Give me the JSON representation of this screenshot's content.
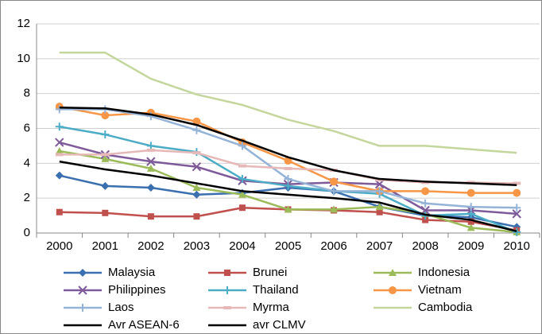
{
  "chart_data": {
    "type": "line",
    "categories": [
      "2000",
      "2001",
      "2002",
      "2003",
      "2004",
      "2005",
      "2006",
      "2007",
      "2008",
      "2009",
      "2010"
    ],
    "ylim": [
      0,
      12
    ],
    "yticks": [
      0,
      2,
      4,
      6,
      8,
      10,
      12
    ],
    "grid": true,
    "series": [
      {
        "name": "Malaysia",
        "color": "#3a6fb0",
        "marker": "diamond",
        "values": [
          3.3,
          2.7,
          2.6,
          2.2,
          2.3,
          2.6,
          2.4,
          1.5,
          1.0,
          0.9,
          0.35
        ]
      },
      {
        "name": "Brunei",
        "color": "#c0504d",
        "marker": "square",
        "values": [
          1.2,
          1.15,
          0.95,
          0.95,
          1.45,
          1.35,
          1.3,
          1.2,
          0.75,
          0.65,
          0.15
        ]
      },
      {
        "name": "Indonesia",
        "color": "#9bbb59",
        "marker": "triangle",
        "values": [
          4.7,
          4.25,
          3.7,
          2.6,
          2.2,
          1.35,
          1.35,
          1.5,
          1.1,
          0.3,
          0.05
        ]
      },
      {
        "name": "Philippines",
        "color": "#7e5a9b",
        "marker": "x",
        "values": [
          5.2,
          4.5,
          4.1,
          3.8,
          3.0,
          2.8,
          2.9,
          2.8,
          1.3,
          1.3,
          1.1
        ]
      },
      {
        "name": "Thailand",
        "color": "#4bacc6",
        "marker": "plus",
        "values": [
          6.1,
          5.65,
          5.0,
          4.65,
          3.1,
          2.7,
          2.4,
          2.25,
          1.0,
          1.1,
          0.05
        ]
      },
      {
        "name": "Vietnam",
        "color": "#f79646",
        "marker": "circle",
        "values": [
          7.25,
          6.75,
          6.9,
          6.4,
          5.2,
          4.15,
          2.95,
          2.4,
          2.4,
          2.3,
          2.3
        ]
      },
      {
        "name": "Laos",
        "color": "#95b3d7",
        "marker": "plus",
        "values": [
          7.1,
          7.1,
          6.7,
          5.9,
          5.0,
          3.1,
          2.4,
          2.4,
          1.7,
          1.5,
          1.45
        ]
      },
      {
        "name": "Myrma",
        "color": "#e6b9b8",
        "marker": "dash",
        "values": [
          4.5,
          4.5,
          4.75,
          4.6,
          3.85,
          3.7,
          3.6,
          3.05,
          2.9,
          2.9,
          2.85
        ]
      },
      {
        "name": "Cambodia",
        "color": "#c3d69b",
        "marker": "none",
        "values": [
          10.35,
          10.35,
          8.85,
          7.95,
          7.35,
          6.5,
          5.85,
          5.0,
          5.0,
          4.8,
          4.6
        ]
      },
      {
        "name": "Avr ASEAN-6",
        "color": "#000000",
        "marker": "none",
        "values": [
          4.1,
          3.65,
          3.3,
          2.85,
          2.4,
          2.2,
          2.0,
          1.75,
          1.05,
          0.75,
          0.1
        ]
      },
      {
        "name": "avr CLMV",
        "color": "#000000",
        "marker": "none",
        "values": [
          7.2,
          7.15,
          6.8,
          6.2,
          5.3,
          4.35,
          3.6,
          3.1,
          2.95,
          2.85,
          2.75
        ]
      }
    ]
  }
}
